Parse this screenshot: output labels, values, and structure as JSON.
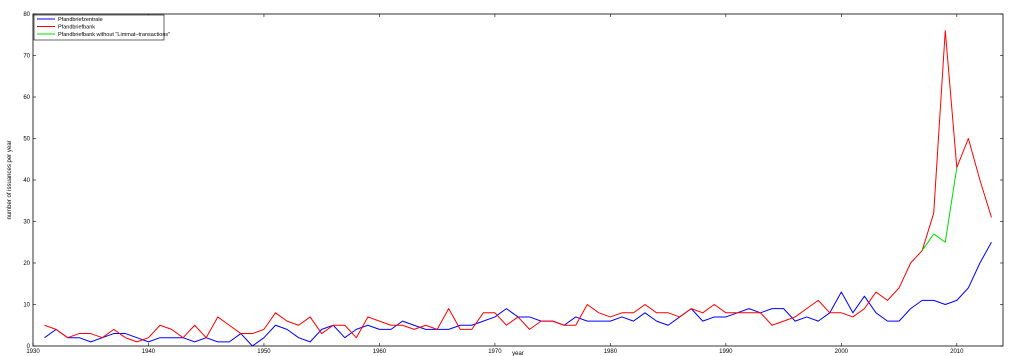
{
  "chart_data": {
    "type": "line",
    "xlabel": "year",
    "ylabel": "number of issuances per year",
    "xlim": [
      1930,
      2014
    ],
    "ylim": [
      0,
      80
    ],
    "xticks": [
      1930,
      1940,
      1950,
      1960,
      1970,
      1980,
      1990,
      2000,
      2010
    ],
    "yticks": [
      0,
      10,
      20,
      30,
      40,
      50,
      60,
      70,
      80
    ],
    "grid": false,
    "legend_position": "top-left",
    "series": [
      {
        "name": "Pfandbriefzentrale",
        "color": "#0000ff",
        "x": [
          1931,
          1932,
          1933,
          1934,
          1935,
          1936,
          1937,
          1938,
          1939,
          1940,
          1941,
          1942,
          1943,
          1944,
          1945,
          1946,
          1947,
          1948,
          1949,
          1950,
          1951,
          1952,
          1953,
          1954,
          1955,
          1956,
          1957,
          1958,
          1959,
          1960,
          1961,
          1962,
          1963,
          1964,
          1965,
          1966,
          1967,
          1968,
          1969,
          1970,
          1971,
          1972,
          1973,
          1974,
          1975,
          1976,
          1977,
          1978,
          1979,
          1980,
          1981,
          1982,
          1983,
          1984,
          1985,
          1986,
          1987,
          1988,
          1989,
          1990,
          1991,
          1992,
          1993,
          1994,
          1995,
          1996,
          1997,
          1998,
          1999,
          2000,
          2001,
          2002,
          2003,
          2004,
          2005,
          2006,
          2007,
          2008,
          2009,
          2010,
          2011,
          2012,
          2013
        ],
        "y": [
          2,
          4,
          2,
          2,
          1,
          2,
          3,
          3,
          2,
          1,
          2,
          2,
          2,
          1,
          2,
          1,
          1,
          3,
          0,
          2,
          5,
          4,
          2,
          1,
          4,
          5,
          2,
          4,
          5,
          4,
          4,
          6,
          5,
          4,
          4,
          4,
          5,
          5,
          6,
          7,
          9,
          7,
          7,
          6,
          6,
          5,
          7,
          6,
          6,
          6,
          7,
          6,
          8,
          6,
          5,
          7,
          9,
          6,
          7,
          7,
          8,
          9,
          8,
          9,
          9,
          6,
          7,
          6,
          8,
          13,
          8,
          12,
          8,
          6,
          6,
          9,
          11,
          11,
          10,
          11,
          14,
          20,
          25
        ]
      },
      {
        "name": "Pfandbriefbank",
        "color": "#ff0000",
        "x": [
          1931,
          1932,
          1933,
          1934,
          1935,
          1936,
          1937,
          1938,
          1939,
          1940,
          1941,
          1942,
          1943,
          1944,
          1945,
          1946,
          1947,
          1948,
          1949,
          1950,
          1951,
          1952,
          1953,
          1954,
          1955,
          1956,
          1957,
          1958,
          1959,
          1960,
          1961,
          1962,
          1963,
          1964,
          1965,
          1966,
          1967,
          1968,
          1969,
          1970,
          1971,
          1972,
          1973,
          1974,
          1975,
          1976,
          1977,
          1978,
          1979,
          1980,
          1981,
          1982,
          1983,
          1984,
          1985,
          1986,
          1987,
          1988,
          1989,
          1990,
          1991,
          1992,
          1993,
          1994,
          1995,
          1996,
          1997,
          1998,
          1999,
          2000,
          2001,
          2002,
          2003,
          2004,
          2005,
          2006,
          2007,
          2008,
          2009,
          2010,
          2011,
          2012,
          2013
        ],
        "y": [
          5,
          4,
          2,
          3,
          3,
          2,
          4,
          2,
          1,
          2,
          5,
          4,
          2,
          5,
          2,
          7,
          5,
          3,
          3,
          4,
          8,
          6,
          5,
          7,
          3,
          5,
          5,
          2,
          7,
          6,
          5,
          5,
          4,
          5,
          4,
          9,
          4,
          4,
          8,
          8,
          5,
          7,
          4,
          6,
          6,
          5,
          5,
          10,
          8,
          7,
          8,
          8,
          10,
          8,
          8,
          7,
          9,
          8,
          10,
          8,
          8,
          8,
          8,
          5,
          6,
          7,
          9,
          11,
          8,
          8,
          7,
          9,
          13,
          11,
          14,
          20,
          23,
          32,
          76,
          43,
          50,
          40,
          31
        ]
      },
      {
        "name": "Pfandbriefbank without \"Limmat–transactions\"",
        "color": "#00dd00",
        "x": [
          2007,
          2008,
          2009,
          2010
        ],
        "y": [
          23,
          27,
          25,
          43
        ]
      }
    ]
  }
}
